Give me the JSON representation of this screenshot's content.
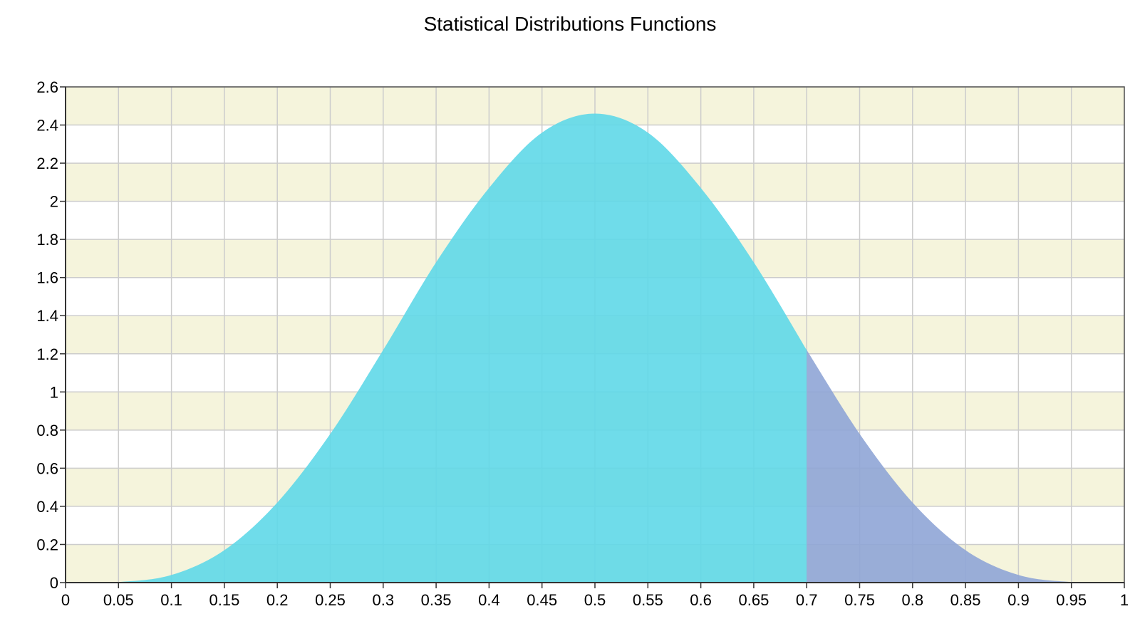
{
  "chart_data": {
    "type": "area",
    "title": "Statistical Distributions Functions",
    "xlabel": "",
    "ylabel": "",
    "xlim": [
      0,
      1
    ],
    "ylim": [
      0,
      2.6
    ],
    "x_ticks": [
      "0",
      "0.05",
      "0.1",
      "0.15",
      "0.2",
      "0.25",
      "0.3",
      "0.35",
      "0.4",
      "0.45",
      "0.5",
      "0.55",
      "0.6",
      "0.65",
      "0.7",
      "0.75",
      "0.8",
      "0.85",
      "0.9",
      "0.95",
      "1"
    ],
    "y_ticks": [
      "0",
      "0.2",
      "0.4",
      "0.6",
      "0.8",
      "1",
      "1.2",
      "1.4",
      "1.6",
      "1.8",
      "2",
      "2.2",
      "2.4",
      "2.6"
    ],
    "grid": true,
    "band_colors": [
      "#f5f4dc",
      "#ffffff"
    ],
    "series": [
      {
        "color": "#5fd8e8",
        "x": [
          0,
          0.05,
          0.1,
          0.15,
          0.2,
          0.25,
          0.3,
          0.35,
          0.4,
          0.45,
          0.5,
          0.55,
          0.6,
          0.65,
          0.7
        ],
        "values": [
          0,
          0.003,
          0.04,
          0.17,
          0.42,
          0.78,
          1.22,
          1.68,
          2.07,
          2.36,
          2.46,
          2.36,
          2.07,
          1.68,
          1.22
        ]
      },
      {
        "color": "#8fa5d6",
        "x": [
          0.7,
          0.75,
          0.8,
          0.85,
          0.9,
          0.95,
          1
        ],
        "values": [
          1.22,
          0.78,
          0.42,
          0.17,
          0.04,
          0.003,
          0
        ]
      }
    ]
  }
}
